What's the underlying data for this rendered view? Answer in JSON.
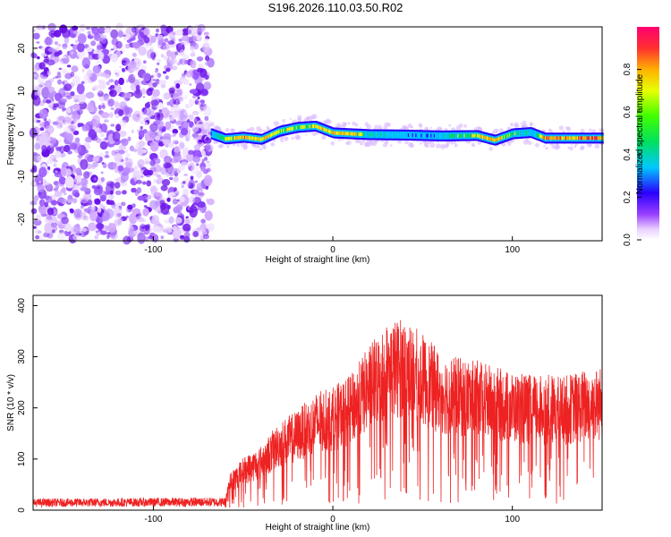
{
  "title": "S196.2026.110.03.50.R02",
  "chart_data": [
    {
      "type": "heatmap",
      "xlabel": "Height of straight line (km)",
      "ylabel": "Frequency (Hz)",
      "xlim": [
        -167,
        150
      ],
      "ylim": [
        -25,
        25
      ],
      "xticks": [
        -100,
        0,
        100
      ],
      "xtick_labels": [
        "-100",
        "0",
        "100"
      ],
      "yticks": [
        -20,
        -10,
        0,
        10,
        20
      ],
      "ytick_labels": [
        "-20",
        "-10",
        "0",
        "10",
        "20"
      ],
      "noise_region": {
        "x_from": -167,
        "x_to": -68
      },
      "ridge": {
        "x": [
          -68,
          -60,
          -50,
          -40,
          -30,
          -20,
          -10,
          0,
          10,
          20,
          40,
          60,
          80,
          90,
          100,
          110,
          118,
          150
        ],
        "freq": [
          0.0,
          -1.2,
          -0.8,
          -1.3,
          0.6,
          1.5,
          1.8,
          0.2,
          0.0,
          -0.2,
          -0.3,
          -0.5,
          -0.4,
          -1.5,
          0.0,
          0.3,
          -1.0,
          -1.0
        ],
        "amplitude": [
          0.5,
          0.75,
          0.9,
          0.85,
          0.8,
          0.7,
          0.85,
          0.85,
          0.9,
          0.6,
          0.5,
          0.5,
          0.8,
          0.9,
          0.7,
          0.5,
          0.95,
          0.95
        ]
      },
      "colorbar": {
        "label": "Normalized spectral amplitude",
        "range": [
          0.0,
          1.0
        ],
        "ticks": [
          0.0,
          0.2,
          0.4,
          0.6,
          0.8
        ],
        "tick_labels": [
          "0.0",
          "0.2",
          "0.4",
          "0.6",
          "0.8"
        ]
      }
    },
    {
      "type": "line",
      "xlabel": "Height of straight line (km)",
      "ylabel": "SNR (10 * v/v)",
      "xlim": [
        -167,
        150
      ],
      "ylim": [
        0,
        420
      ],
      "xticks": [
        -100,
        0,
        100
      ],
      "xtick_labels": [
        "-100",
        "0",
        "100"
      ],
      "yticks": [
        0,
        100,
        200,
        300,
        400
      ],
      "ytick_labels": [
        "0",
        "100",
        "200",
        "300",
        "400"
      ],
      "series": [
        {
          "name": "SNR",
          "color": "#ee2222",
          "envelope_x": [
            -167,
            -60,
            -58,
            -50,
            -40,
            -30,
            -20,
            -10,
            0,
            10,
            20,
            30,
            40,
            50,
            60,
            70,
            80,
            90,
            100,
            110,
            120,
            130,
            140,
            150
          ],
          "envelope_y": [
            18,
            20,
            60,
            90,
            110,
            150,
            170,
            200,
            210,
            230,
            280,
            320,
            330,
            300,
            270,
            260,
            255,
            245,
            235,
            230,
            230,
            230,
            240,
            245
          ]
        }
      ]
    }
  ]
}
